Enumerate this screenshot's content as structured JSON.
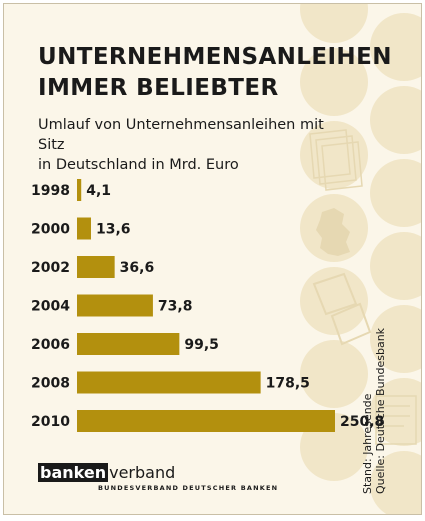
{
  "title_lines": [
    "UNTERNEHMENSANLEIHEN",
    "IMMER BELIEBTER"
  ],
  "subtitle_lines": [
    "Umlauf von Unternehmensanleihen mit Sitz",
    "in Deutschland in Mrd. Euro"
  ],
  "source_lines": [
    "Stand: Jahresende",
    "Quelle: Deutsche Bundesbank"
  ],
  "logo": {
    "box": "banken",
    "rest": "verband",
    "sub": "BUNDESVERBAND DEUTSCHER BANKEN"
  },
  "colors": {
    "bar": "#b3900e",
    "background": "#fbf6e9",
    "circle": "#f1e6c8",
    "icon": "#e6d8b2"
  },
  "decorative_icons": [
    "documents-icon",
    "germany-map-icon",
    "sticker-icon",
    "bond-paper-icon"
  ],
  "chart_data": {
    "type": "bar",
    "orientation": "horizontal",
    "categories": [
      "1998",
      "2000",
      "2002",
      "2004",
      "2006",
      "2008",
      "2010"
    ],
    "values": [
      4.1,
      13.6,
      36.6,
      73.8,
      99.5,
      178.5,
      250.8
    ],
    "value_labels": [
      "4,1",
      "13,6",
      "36,6",
      "73,8",
      "99,5",
      "178,5",
      "250,8"
    ],
    "title": "UNTERNEHMENSANLEIHEN IMMER BELIEBTER",
    "xlabel": "",
    "ylabel": "",
    "xlim": [
      0,
      250.8
    ],
    "grid": false,
    "legend": "none"
  }
}
